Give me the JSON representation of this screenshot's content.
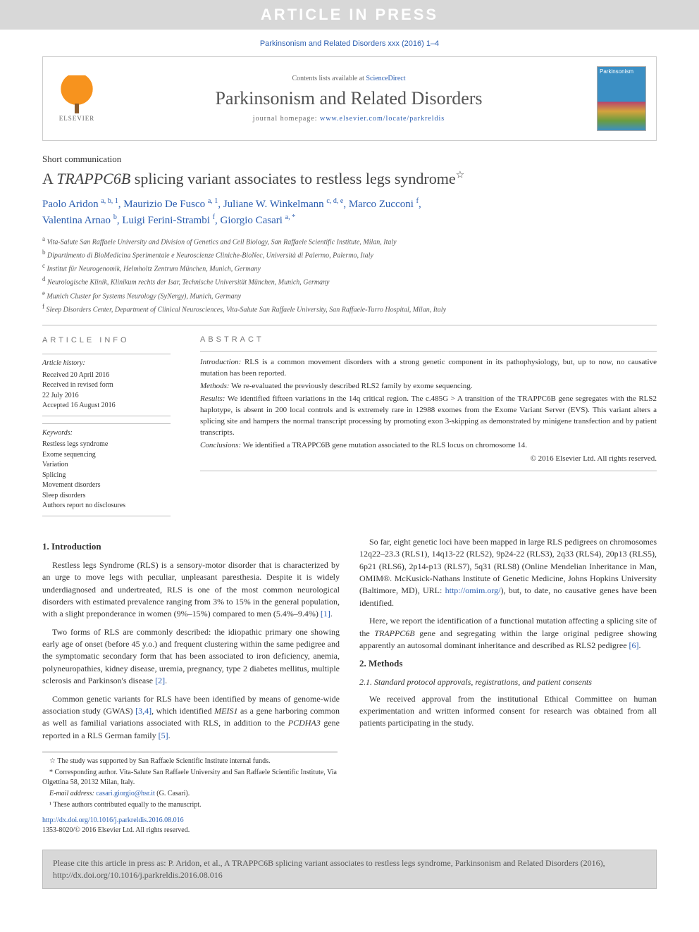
{
  "banner": {
    "article_in_press": "ARTICLE IN PRESS",
    "citation_top": "Parkinsonism and Related Disorders xxx (2016) 1–4",
    "contents_lists": "Contents lists available at ",
    "sciencedirect": "ScienceDirect",
    "journal_title": "Parkinsonism and Related Disorders",
    "homepage_label": "journal homepage: ",
    "homepage_url": "www.elsevier.com/locate/parkreldis",
    "elsevier": "ELSEVIER",
    "cover_label": "Parkinsonism"
  },
  "article": {
    "type": "Short communication",
    "title_pre": "A ",
    "title_gene": "TRAPPC6B",
    "title_post": " splicing variant associates to restless legs syndrome",
    "title_star": "☆"
  },
  "authors": {
    "a1": "Paolo Aridon",
    "a1_sup": "a, b, 1",
    "a2": "Maurizio De Fusco",
    "a2_sup": "a, 1",
    "a3": "Juliane W. Winkelmann",
    "a3_sup": "c, d, e",
    "a4": "Marco Zucconi",
    "a4_sup": "f",
    "a5": "Valentina Arnao",
    "a5_sup": "b",
    "a6": "Luigi Ferini-Strambi",
    "a6_sup": "f",
    "a7": "Giorgio Casari",
    "a7_sup": "a, *"
  },
  "affiliations": {
    "a": "Vita-Salute San Raffaele University and Division of Genetics and Cell Biology, San Raffaele Scientific Institute, Milan, Italy",
    "b": "Dipartimento di BioMedicina Sperimentale e Neuroscienze Cliniche-BioNec, Università di Palermo, Palermo, Italy",
    "c": "Institut für Neurogenomik, Helmholtz Zentrum München, Munich, Germany",
    "d": "Neurologische Klinik, Klinikum rechts der Isar, Technische Universität München, Munich, Germany",
    "e": "Munich Cluster for Systems Neurology (SyNergy), Munich, Germany",
    "f": "Sleep Disorders Center, Department of Clinical Neurosciences, Vita-Salute San Raffaele University, San Raffaele-Turro Hospital, Milan, Italy"
  },
  "info": {
    "section_label": "ARTICLE INFO",
    "history_label": "Article history:",
    "h1": "Received 20 April 2016",
    "h2": "Received in revised form",
    "h3": "22 July 2016",
    "h4": "Accepted 16 August 2016",
    "keywords_label": "Keywords:",
    "k1": "Restless legs syndrome",
    "k2": "Exome sequencing",
    "k3": "Variation",
    "k4": "Splicing",
    "k5": "Movement disorders",
    "k6": "Sleep disorders",
    "k7": "Authors report no disclosures"
  },
  "abstract": {
    "section_label": "ABSTRACT",
    "intro_label": "Introduction:",
    "intro": " RLS is a common movement disorders with a strong genetic component in its pathophysiology, but, up to now, no causative mutation has been reported.",
    "methods_label": "Methods:",
    "methods": " We re-evaluated the previously described RLS2 family by exome sequencing.",
    "results_label": "Results:",
    "results": " We identified fifteen variations in the 14q critical region. The c.485G > A transition of the TRAPPC6B gene segregates with the RLS2 haplotype, is absent in 200 local controls and is extremely rare in 12988 exomes from the Exome Variant Server (EVS). This variant alters a splicing site and hampers the normal transcript processing by promoting exon 3-skipping as demonstrated by minigene transfection and by patient transcripts.",
    "conclusions_label": "Conclusions:",
    "conclusions": " We identified a TRAPPC6B gene mutation associated to the RLS locus on chromosome 14.",
    "copyright": "© 2016 Elsevier Ltd. All rights reserved."
  },
  "body": {
    "h1": "1. Introduction",
    "p1": "Restless legs Syndrome (RLS) is a sensory-motor disorder that is characterized by an urge to move legs with peculiar, unpleasant paresthesia. Despite it is widely underdiagnosed and undertreated, RLS is one of the most common neurological disorders with estimated prevalence ranging from 3% to 15% in the general population, with a slight preponderance in women (9%–15%) compared to men (5.4%–9.4%) ",
    "r1": "[1]",
    "p1b": ".",
    "p2": "Two forms of RLS are commonly described: the idiopathic primary one showing early age of onset (before 45 y.o.) and frequent clustering within the same pedigree and the symptomatic secondary form that has been associated to iron deficiency, anemia, polyneuropathies, kidney disease, uremia, pregnancy, type 2 diabetes mellitus, multiple sclerosis and Parkinson's disease ",
    "r2": "[2]",
    "p2b": ".",
    "p3a": "Common genetic variants for RLS have been identified by means of genome-wide association study (GWAS) ",
    "r34": "[3,4]",
    "p3b": ", which identified ",
    "p3c": "MEIS1",
    "p3d": " as a gene harboring common as well as familial variations associated with RLS, in addition to the ",
    "p3e": "PCDHA3",
    "p3f": " gene reported in a RLS German family ",
    "r5": "[5]",
    "p3g": ".",
    "p4a": "So far, eight genetic loci have been mapped in large RLS pedigrees on chromosomes 12q22–23.3 (RLS1), 14q13-22 (RLS2), 9p24-22 (RLS3), 2q33 (RLS4), 20p13 (RLS5), 6p21 (RLS6), 2p14-p13 (RLS7), 5q31 (RLS8) (Online Mendelian Inheritance in Man, OMIM®. McKusick-Nathans Institute of Genetic Medicine, Johns Hopkins University (Baltimore, MD), URL: ",
    "omim_url": "http://omim.org/",
    "p4b": "), but, to date, no causative genes have been identified.",
    "p5a": "Here, we report the identification of a functional mutation affecting a splicing site of the ",
    "p5gene": "TRAPPC6B",
    "p5b": " gene and segregating within the large original pedigree showing apparently an autosomal dominant inheritance and described as RLS2 pedigree ",
    "r6": "[6]",
    "p5c": ".",
    "h2": "2. Methods",
    "h2_1": "2.1. Standard protocol approvals, registrations, and patient consents",
    "p6": "We received approval from the institutional Ethical Committee on human experimentation and written informed consent for research was obtained from all patients participating in the study."
  },
  "footnotes": {
    "star": "☆ The study was supported by San Raffaele Scientific Institute internal funds.",
    "corr": "* Corresponding author. Vita-Salute San Raffaele University and San Raffaele Scientific Institute, Via Olgettina 58, 20132 Milan, Italy.",
    "email_label": "E-mail address: ",
    "email": "casari.giorgio@hsr.it",
    "email_name": " (G. Casari).",
    "equal": "¹ These authors contributed equally to the manuscript."
  },
  "doi": {
    "url": "http://dx.doi.org/10.1016/j.parkreldis.2016.08.016",
    "issn": "1353-8020/© 2016 Elsevier Ltd. All rights reserved."
  },
  "cite_footer": "Please cite this article in press as: P. Aridon, et al., A TRAPPC6B splicing variant associates to restless legs syndrome, Parkinsonism and Related Disorders (2016), http://dx.doi.org/10.1016/j.parkreldis.2016.08.016"
}
